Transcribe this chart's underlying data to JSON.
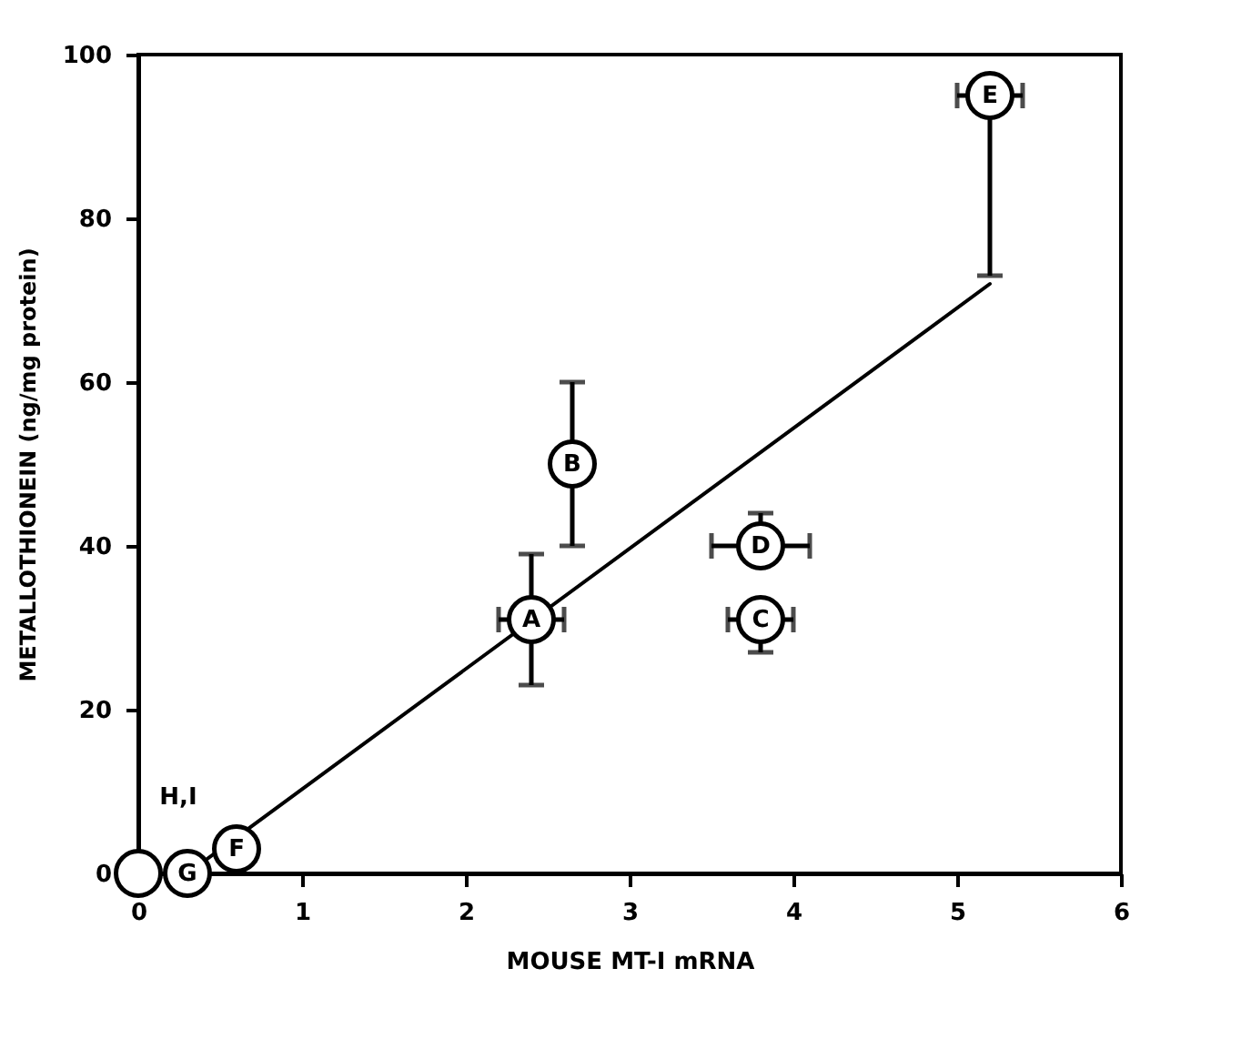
{
  "chart_data": {
    "type": "scatter",
    "xlabel": "MOUSE MT-I mRNA",
    "ylabel": "METALLOTHIONEIN (ng/mg protein)",
    "xlim": [
      0,
      6
    ],
    "ylim": [
      0,
      100
    ],
    "xticks": [
      0,
      1,
      2,
      3,
      4,
      5,
      6
    ],
    "yticks": [
      0,
      20,
      40,
      60,
      80,
      100
    ],
    "marker": "circle",
    "grid": false,
    "annotations": [
      {
        "text": "H,I",
        "x": 0,
        "y": 0
      }
    ],
    "series": [
      {
        "type": "line",
        "marker": "none",
        "color": "#000000",
        "x": [
          0.3,
          5.2
        ],
        "values": [
          0,
          72
        ]
      },
      {
        "name": "A",
        "color": "#000000",
        "x": [
          2.4
        ],
        "values": [
          31
        ],
        "errors": [
          [
            23,
            39
          ]
        ],
        "xerrors": [
          [
            2.2,
            2.6
          ]
        ]
      },
      {
        "name": "B",
        "color": "#000000",
        "x": [
          2.65
        ],
        "values": [
          50
        ],
        "errors": [
          [
            40,
            60
          ]
        ]
      },
      {
        "name": "C",
        "color": "#000000",
        "x": [
          3.8
        ],
        "values": [
          31
        ],
        "errors": [
          [
            27,
            31
          ]
        ],
        "xerrors": [
          [
            3.6,
            4.0
          ]
        ]
      },
      {
        "name": "D",
        "color": "#000000",
        "x": [
          3.8
        ],
        "values": [
          40
        ],
        "errors": [
          [
            40,
            44
          ]
        ],
        "xerrors": [
          [
            3.5,
            4.1
          ]
        ]
      },
      {
        "name": "E",
        "color": "#000000",
        "x": [
          5.2
        ],
        "values": [
          95
        ],
        "errors": [
          [
            73,
            95
          ]
        ],
        "xerrors": [
          [
            5.0,
            5.4
          ]
        ]
      },
      {
        "name": "F",
        "color": "#000000",
        "x": [
          0.6
        ],
        "values": [
          3
        ]
      },
      {
        "name": "G",
        "color": "#000000",
        "x": [
          0.3
        ],
        "values": [
          0
        ]
      },
      {
        "color": "#000000",
        "x": [
          0
        ],
        "values": [
          0
        ]
      }
    ]
  }
}
